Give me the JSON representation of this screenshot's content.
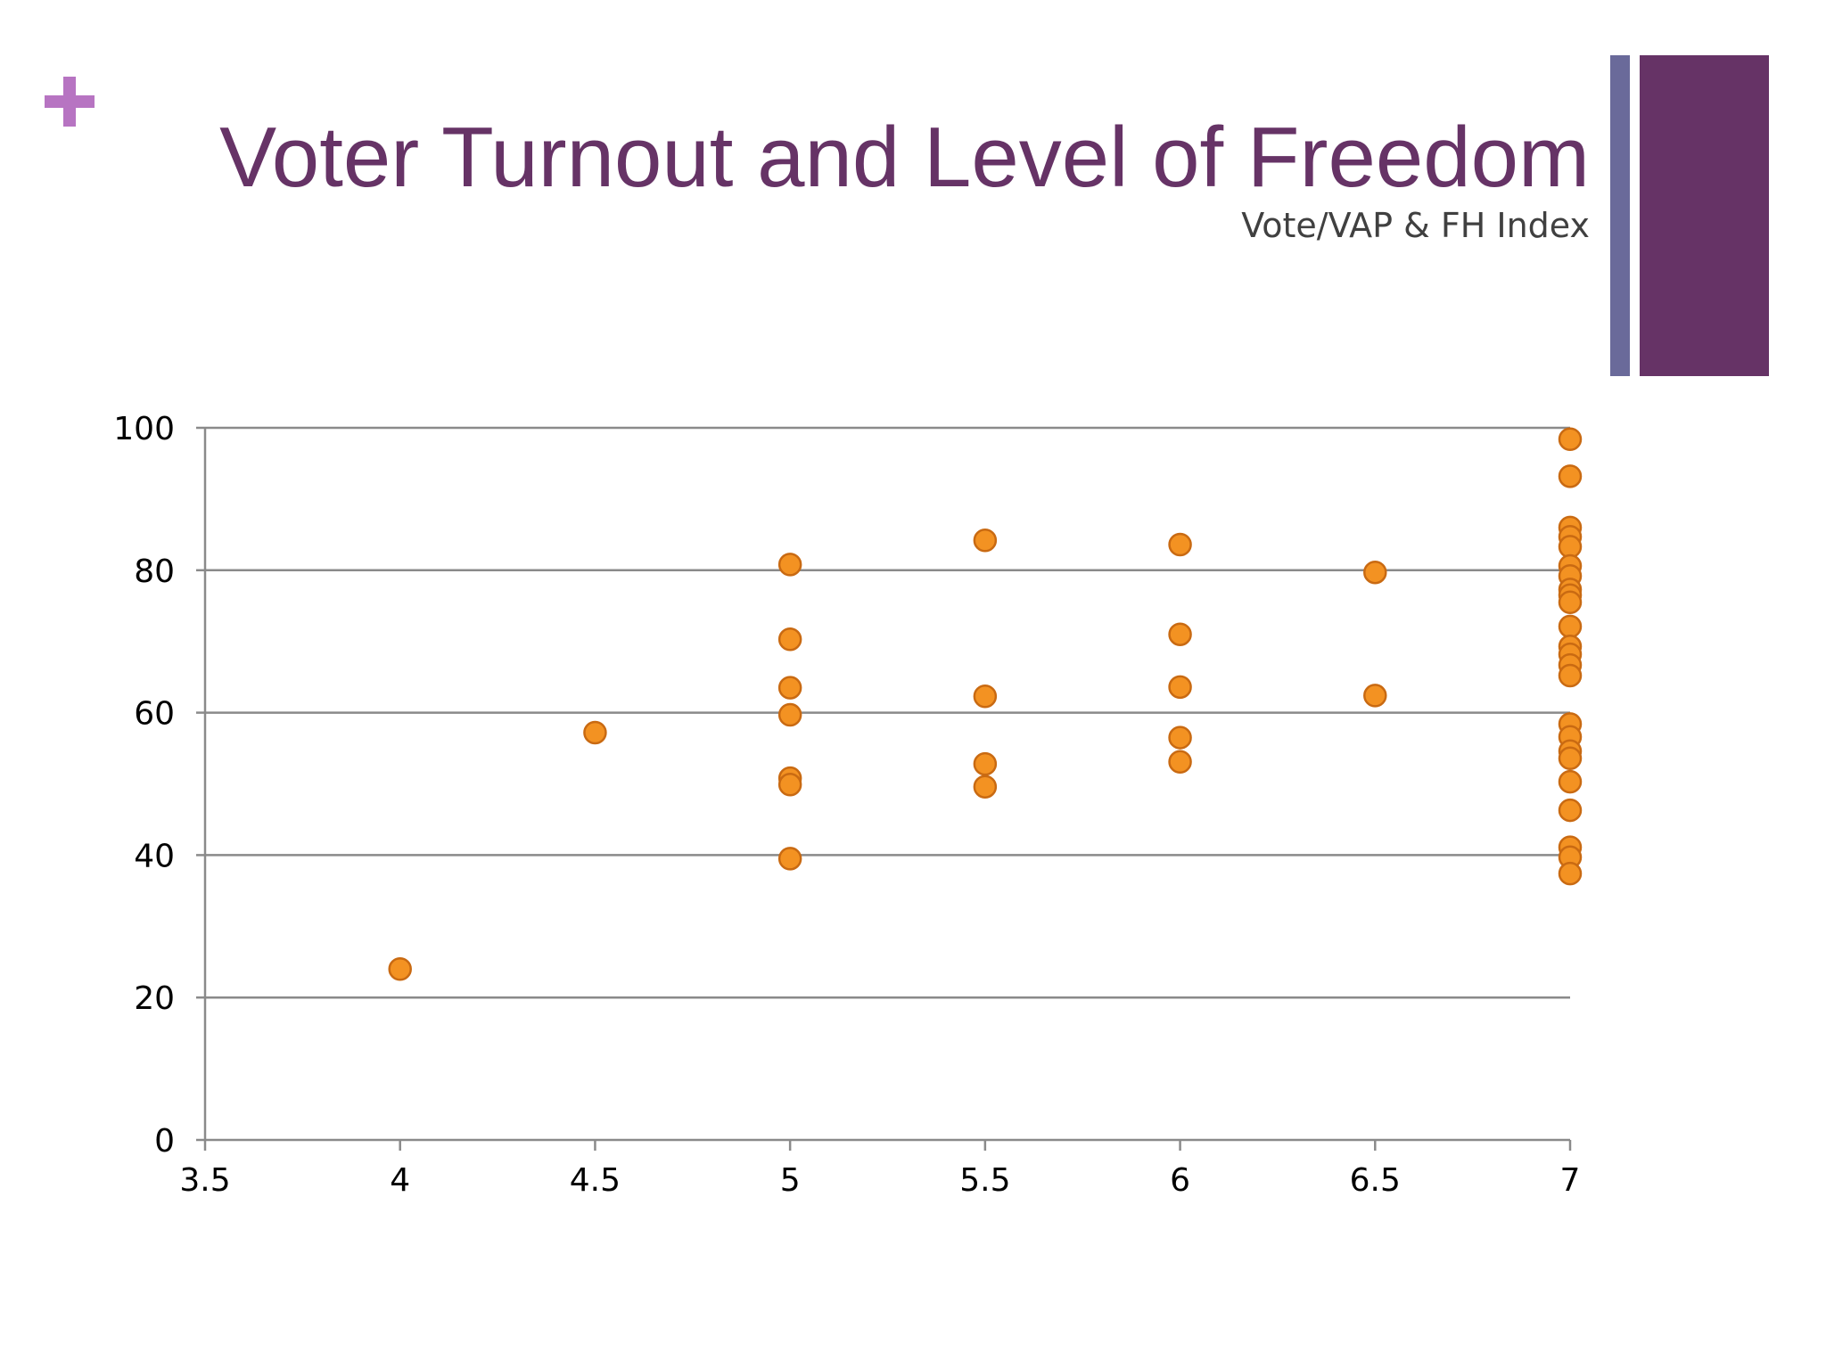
{
  "slide": {
    "title": "Voter Turnout and Level of Freedom",
    "subtitle": "Vote/VAP & FH Index",
    "icons": [
      "plus-icon"
    ],
    "colors": {
      "title": "#663366",
      "plus": "#b774c2",
      "accent_bar_thin": "#6a6a9a",
      "accent_bar_thick": "#663366",
      "marker_fill": "#f39222",
      "marker_stroke": "#c96a12",
      "gridline": "#8a8a8a"
    }
  },
  "chart_data": {
    "type": "scatter",
    "title": "",
    "xlabel": "",
    "ylabel": "",
    "xlim": [
      3.5,
      7
    ],
    "ylim": [
      0,
      100
    ],
    "x_ticks": [
      "3.5",
      "4",
      "4.5",
      "5",
      "5.5",
      "6",
      "6.5",
      "7"
    ],
    "y_ticks": [
      "0",
      "20",
      "40",
      "60",
      "80",
      "100"
    ],
    "grid": "horizontal",
    "legend": "none",
    "series": [
      {
        "points": [
          [
            4,
            24
          ],
          [
            4.5,
            57.2
          ],
          [
            5,
            80.8
          ],
          [
            5,
            70.3
          ],
          [
            5,
            63.5
          ],
          [
            5,
            59.7
          ],
          [
            5,
            50.8
          ],
          [
            5,
            49.9
          ],
          [
            5,
            39.5
          ],
          [
            5.5,
            84.2
          ],
          [
            5.5,
            62.3
          ],
          [
            5.5,
            52.8
          ],
          [
            5.5,
            49.6
          ],
          [
            6,
            83.6
          ],
          [
            6,
            71
          ],
          [
            6,
            63.6
          ],
          [
            6,
            56.5
          ],
          [
            6,
            53.1
          ],
          [
            6.5,
            79.7
          ],
          [
            6.5,
            62.4
          ],
          [
            7,
            98.4
          ],
          [
            7,
            93.2
          ],
          [
            7,
            86
          ],
          [
            7,
            84.7
          ],
          [
            7,
            83.3
          ],
          [
            7,
            80.6
          ],
          [
            7,
            79.2
          ],
          [
            7,
            77.3
          ],
          [
            7,
            76.5
          ],
          [
            7,
            75.5
          ],
          [
            7,
            72.1
          ],
          [
            7,
            69.3
          ],
          [
            7,
            68.2
          ],
          [
            7,
            66.7
          ],
          [
            7,
            65.2
          ],
          [
            7,
            58.4
          ],
          [
            7,
            56.6
          ],
          [
            7,
            54.6
          ],
          [
            7,
            53.6
          ],
          [
            7,
            50.3
          ],
          [
            7,
            46.3
          ],
          [
            7,
            41.1
          ],
          [
            7,
            39.7
          ],
          [
            7,
            37.4
          ]
        ]
      }
    ]
  }
}
